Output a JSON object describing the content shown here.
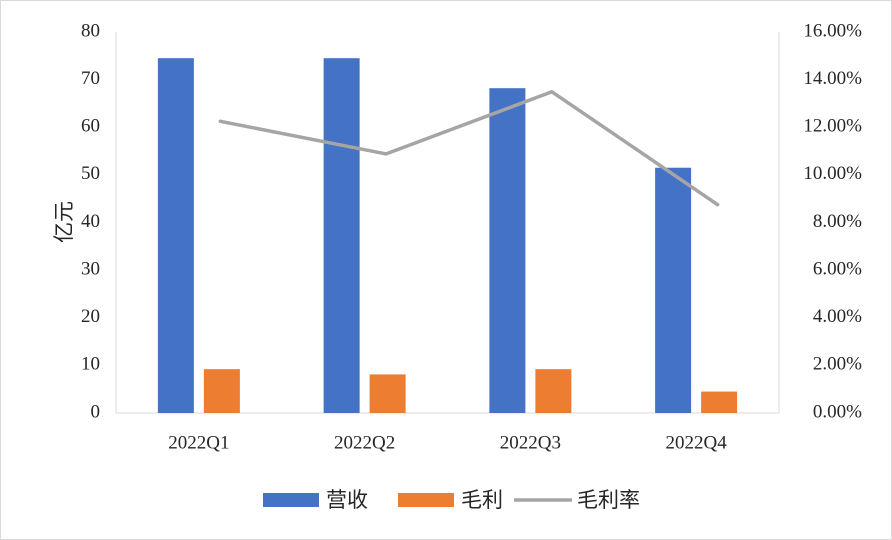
{
  "chart_data": {
    "type": "bar",
    "title": "",
    "xlabel": "",
    "ylabel": "亿元",
    "categories": [
      "2022Q1",
      "2022Q2",
      "2022Q3",
      "2022Q4"
    ],
    "ylim": [
      0,
      80
    ],
    "yticks": [
      "0",
      "10",
      "20",
      "30",
      "40",
      "50",
      "60",
      "70",
      "80"
    ],
    "y2lim": [
      0,
      0.16
    ],
    "y2ticks": [
      "0.00%",
      "2.00%",
      "4.00%",
      "6.00%",
      "8.00%",
      "10.00%",
      "12.00%",
      "14.00%",
      "16.00%"
    ],
    "series": [
      {
        "name": "营收",
        "type": "bar",
        "axis": "left",
        "color": "#4472c4",
        "values": [
          74.5,
          74.5,
          68.2,
          51.5
        ]
      },
      {
        "name": "毛利",
        "type": "bar",
        "axis": "left",
        "color": "#ed7d31",
        "values": [
          9.2,
          8.1,
          9.2,
          4.5
        ]
      },
      {
        "name": "毛利率",
        "type": "line",
        "axis": "right",
        "color": "#a5a5a5",
        "values": [
          0.1225,
          0.1088,
          0.1349,
          0.0875
        ]
      }
    ],
    "grid": false,
    "legend_position": "bottom"
  }
}
